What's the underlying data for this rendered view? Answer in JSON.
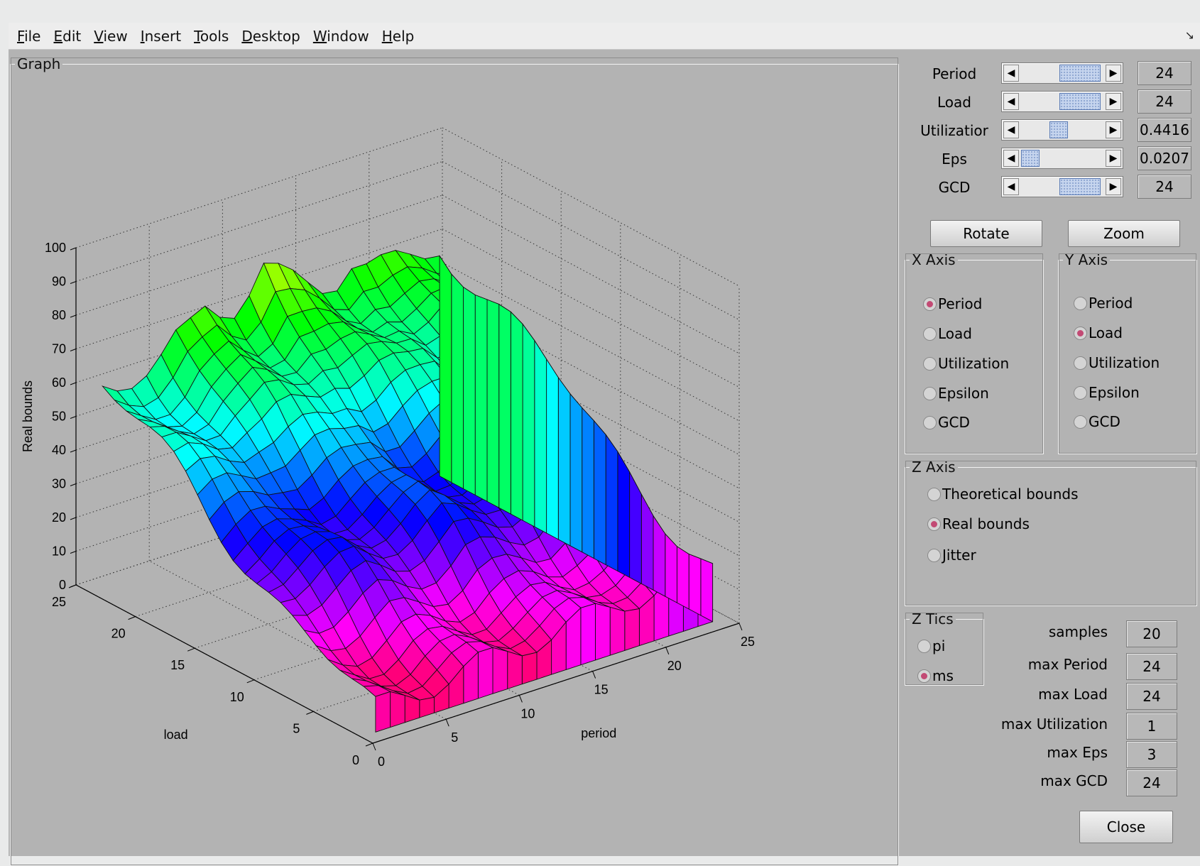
{
  "menu": [
    "File",
    "Edit",
    "View",
    "Insert",
    "Tools",
    "Desktop",
    "Window",
    "Help"
  ],
  "corner_icon": "undock-arrow-icon",
  "graph_panel": {
    "title": "Graph"
  },
  "sliders": [
    {
      "label": "Period",
      "value": "24",
      "fraction": 0.88
    },
    {
      "label": "Load",
      "value": "24",
      "fraction": 0.88
    },
    {
      "label": "Utilizatior",
      "value": "0.4416",
      "fraction": 0.44
    },
    {
      "label": "Eps",
      "value": "0.0207",
      "fraction": 0.01
    },
    {
      "label": "GCD",
      "value": "24",
      "fraction": 0.88
    }
  ],
  "buttons": {
    "rotate": "Rotate",
    "zoom": "Zoom",
    "close": "Close"
  },
  "x_axis": {
    "title": "X Axis",
    "options": [
      "Period",
      "Load",
      "Utilization",
      "Epsilon",
      "GCD"
    ],
    "selected": 0
  },
  "y_axis": {
    "title": "Y Axis",
    "options": [
      "Period",
      "Load",
      "Utilization",
      "Epsilon",
      "GCD"
    ],
    "selected": 1
  },
  "z_axis": {
    "title": "Z Axis",
    "options": [
      "Theoretical bounds",
      "Real bounds",
      "Jitter"
    ],
    "selected": 1
  },
  "z_tics": {
    "title": "Z Tics",
    "options": [
      "pi",
      "ms"
    ],
    "selected": 1
  },
  "fields": [
    {
      "label": "samples",
      "value": "20"
    },
    {
      "label": "max Period",
      "value": "24"
    },
    {
      "label": "max Load",
      "value": "24"
    },
    {
      "label": "max Utilization",
      "value": "1"
    },
    {
      "label": "max Eps",
      "value": "3"
    },
    {
      "label": "max GCD",
      "value": "24"
    }
  ],
  "chart_data": {
    "type": "surface",
    "xlabel": "period",
    "ylabel": "load",
    "zlabel": "Real bounds",
    "xlim": [
      0,
      25
    ],
    "ylim": [
      0,
      25
    ],
    "zlim": [
      0,
      100
    ],
    "x_ticks": [
      "0",
      "5",
      "10",
      "15",
      "20",
      "25"
    ],
    "y_ticks": [
      "0",
      "5",
      "10",
      "15",
      "20",
      "25"
    ],
    "z_ticks": [
      "0",
      "10",
      "20",
      "30",
      "40",
      "50",
      "60",
      "70",
      "80",
      "90",
      "100"
    ],
    "grid": true,
    "colormap": "hsv",
    "x": [
      1,
      2,
      3,
      4,
      5,
      6,
      7,
      8,
      9,
      10,
      11,
      12,
      13,
      14,
      15,
      16,
      17,
      18,
      19,
      20,
      21,
      22,
      23,
      24
    ],
    "y": [
      1,
      2,
      3,
      4,
      5,
      6,
      7,
      8,
      9,
      10,
      11,
      12,
      13,
      14,
      15,
      16,
      17,
      18,
      19,
      20,
      21,
      22,
      23,
      24
    ],
    "z_note": "Real bounds increase with load; steps/ridges at period ≈ 6, 12, 18; peak ≈ 88 near period 12, load 23."
  }
}
